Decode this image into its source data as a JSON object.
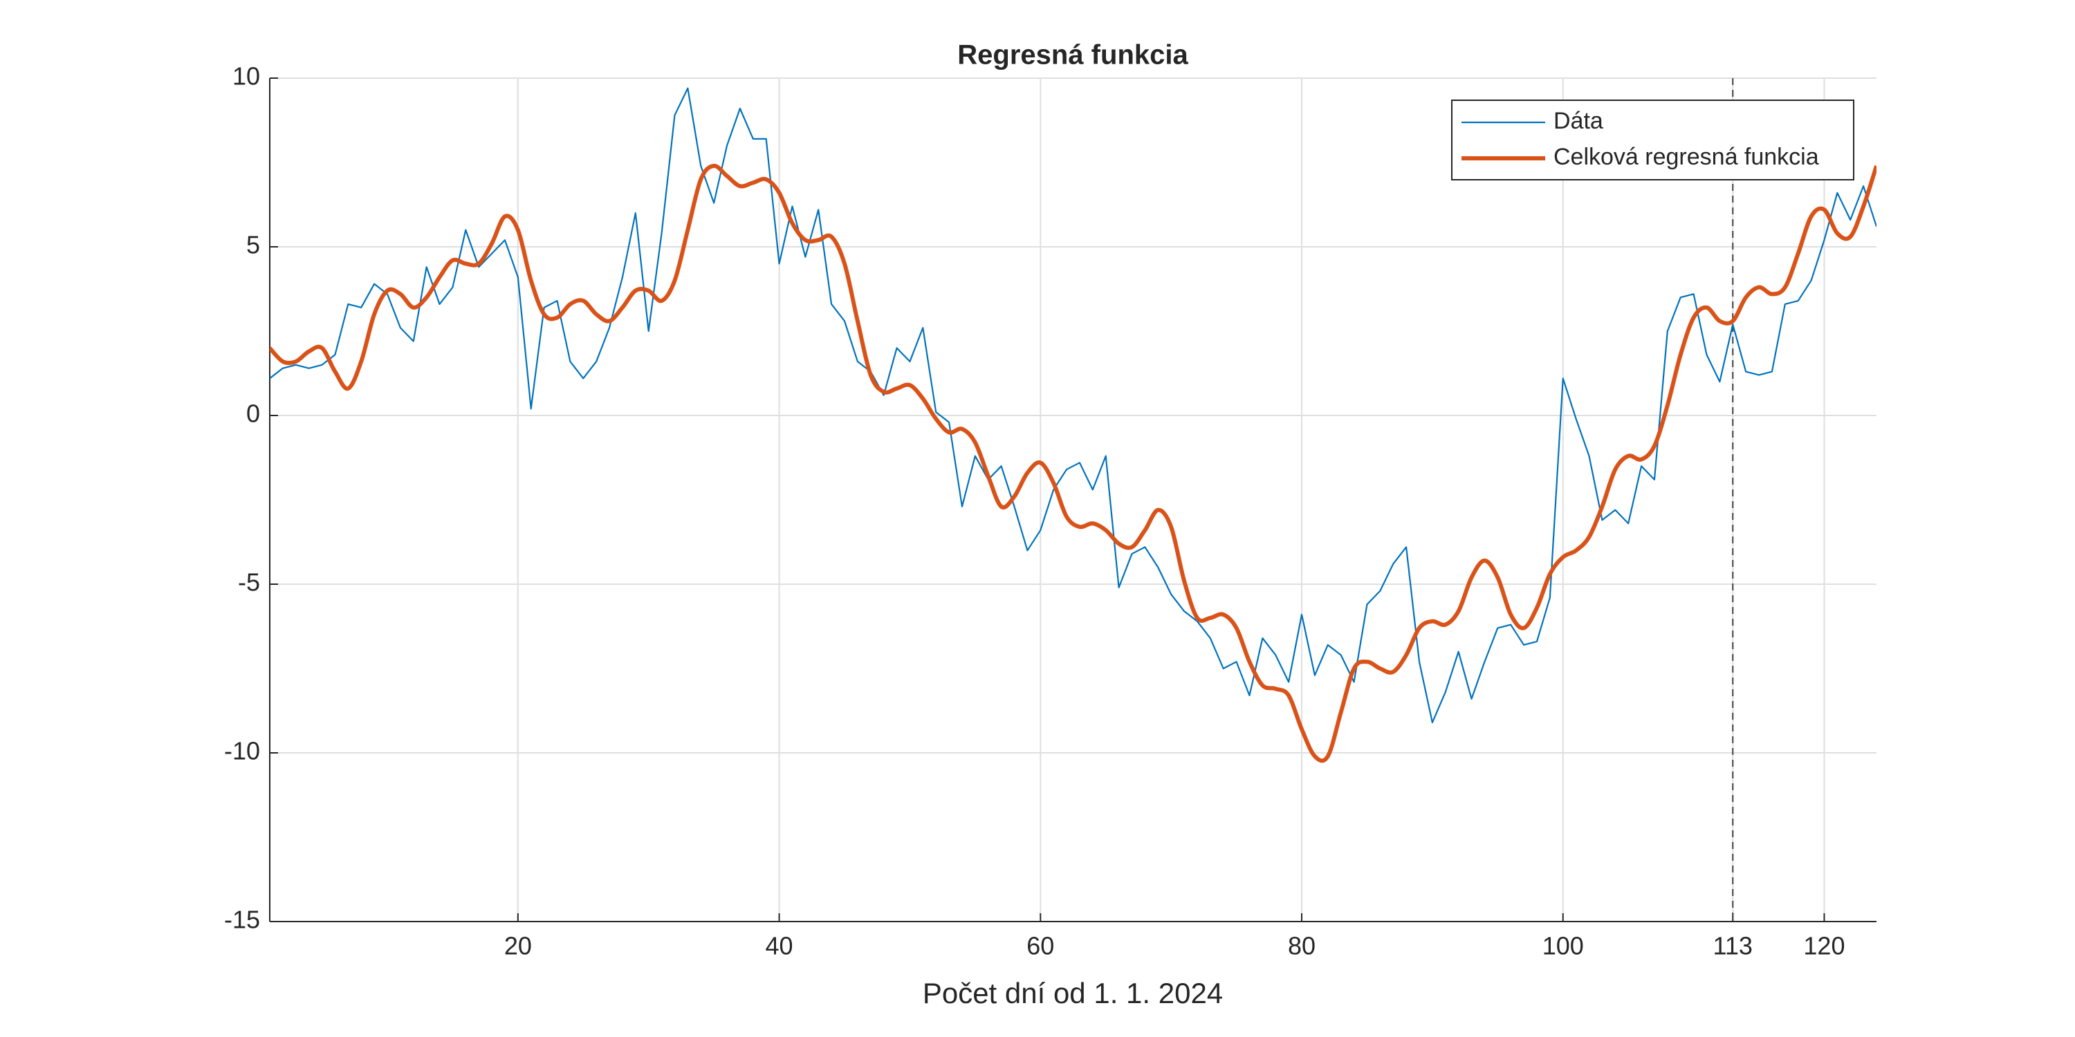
{
  "chart_data": {
    "type": "line",
    "title": "Regresná funkcia",
    "xlabel": "Počet dní od 1. 1. 2024",
    "x": [
      1,
      2,
      3,
      4,
      5,
      6,
      7,
      8,
      9,
      10,
      11,
      12,
      13,
      14,
      15,
      16,
      17,
      18,
      19,
      20,
      21,
      22,
      23,
      24,
      25,
      26,
      27,
      28,
      29,
      30,
      31,
      32,
      33,
      34,
      35,
      36,
      37,
      38,
      39,
      40,
      41,
      42,
      43,
      44,
      45,
      46,
      47,
      48,
      49,
      50,
      51,
      52,
      53,
      54,
      55,
      56,
      57,
      58,
      59,
      60,
      61,
      62,
      63,
      64,
      65,
      66,
      67,
      68,
      69,
      70,
      71,
      72,
      73,
      74,
      75,
      76,
      77,
      78,
      79,
      80,
      81,
      82,
      83,
      84,
      85,
      86,
      87,
      88,
      89,
      90,
      91,
      92,
      93,
      94,
      95,
      96,
      97,
      98,
      99,
      100,
      101,
      102,
      103,
      104,
      105,
      106,
      107,
      108,
      109,
      110,
      111,
      112,
      113,
      114,
      115,
      116,
      117,
      118,
      119,
      120,
      121,
      122,
      123,
      124
    ],
    "series": [
      {
        "name": "Dáta",
        "color": "#0072bd",
        "smooth": false,
        "values": [
          1.1,
          1.4,
          1.5,
          1.4,
          1.5,
          1.8,
          3.3,
          3.2,
          3.9,
          3.6,
          2.6,
          2.2,
          4.4,
          3.3,
          3.8,
          5.5,
          4.4,
          4.8,
          5.2,
          4.1,
          0.2,
          3.2,
          3.4,
          1.6,
          1.1,
          1.6,
          2.6,
          4.1,
          6.0,
          2.5,
          5.4,
          8.9,
          9.7,
          7.4,
          6.3,
          8.0,
          9.1,
          8.2,
          8.2,
          4.5,
          6.2,
          4.7,
          6.1,
          3.3,
          2.8,
          1.6,
          1.3,
          0.6,
          2.0,
          1.6,
          2.6,
          0.1,
          -0.2,
          -2.7,
          -1.2,
          -1.9,
          -1.5,
          -2.7,
          -4.0,
          -3.4,
          -2.2,
          -1.6,
          -1.4,
          -2.2,
          -1.2,
          -5.1,
          -4.1,
          -3.9,
          -4.5,
          -5.3,
          -5.8,
          -6.1,
          -6.6,
          -7.5,
          -7.3,
          -8.3,
          -6.6,
          -7.1,
          -7.9,
          -5.9,
          -7.7,
          -6.8,
          -7.1,
          -7.9,
          -5.6,
          -5.2,
          -4.4,
          -3.9,
          -7.3,
          -9.1,
          -8.2,
          -7.0,
          -8.4,
          -7.3,
          -6.3,
          -6.2,
          -6.8,
          -6.7,
          -5.4,
          1.1,
          -0.1,
          -1.2,
          -3.1,
          -2.8,
          -3.2,
          -1.5,
          -1.9,
          2.5,
          3.5,
          3.6,
          1.8,
          1.0,
          2.7,
          1.3,
          1.2,
          1.3,
          3.3,
          3.4,
          4.0,
          5.2,
          6.6,
          5.8,
          6.8,
          5.6
        ]
      },
      {
        "name": "Celková regresná funkcia",
        "color": "#d95319",
        "smooth": true,
        "values": [
          2.0,
          1.6,
          1.6,
          1.9,
          2.0,
          1.3,
          0.8,
          1.6,
          3.0,
          3.7,
          3.6,
          3.2,
          3.5,
          4.1,
          4.6,
          4.5,
          4.5,
          5.1,
          5.9,
          5.5,
          4.0,
          3.0,
          2.9,
          3.3,
          3.4,
          3.0,
          2.8,
          3.2,
          3.7,
          3.7,
          3.4,
          4.0,
          5.5,
          7.0,
          7.4,
          7.1,
          6.8,
          6.9,
          7.0,
          6.6,
          5.7,
          5.2,
          5.2,
          5.3,
          4.5,
          2.8,
          1.2,
          0.7,
          0.8,
          0.9,
          0.5,
          -0.1,
          -0.5,
          -0.4,
          -0.8,
          -1.8,
          -2.7,
          -2.4,
          -1.7,
          -1.4,
          -2.0,
          -3.0,
          -3.3,
          -3.2,
          -3.4,
          -3.8,
          -3.9,
          -3.4,
          -2.8,
          -3.3,
          -4.9,
          -6.0,
          -6.0,
          -5.9,
          -6.3,
          -7.3,
          -8.0,
          -8.1,
          -8.3,
          -9.3,
          -10.1,
          -10.1,
          -8.8,
          -7.5,
          -7.3,
          -7.5,
          -7.6,
          -7.1,
          -6.3,
          -6.1,
          -6.2,
          -5.8,
          -4.8,
          -4.3,
          -4.8,
          -5.9,
          -6.3,
          -5.7,
          -4.7,
          -4.2,
          -4.0,
          -3.6,
          -2.7,
          -1.6,
          -1.2,
          -1.3,
          -0.9,
          0.3,
          1.8,
          2.9,
          3.2,
          2.8,
          2.8,
          3.5,
          3.8,
          3.6,
          3.8,
          4.8,
          5.9,
          6.1,
          5.4,
          5.3,
          6.2,
          7.4
        ]
      }
    ],
    "vline": 113,
    "xlim": [
      1,
      124
    ],
    "xticks": [
      20,
      40,
      60,
      80,
      100,
      113,
      120
    ],
    "ylim": [
      -15,
      10
    ],
    "yticks": [
      -15,
      -10,
      -5,
      0,
      5,
      10
    ],
    "grid": true,
    "legend": "upper right"
  }
}
